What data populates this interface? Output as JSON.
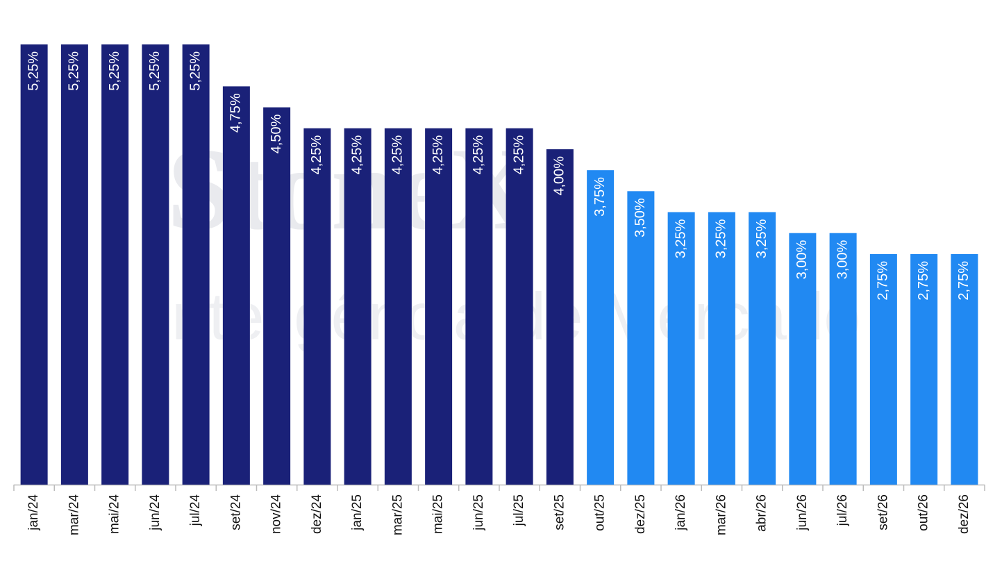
{
  "chart_data": {
    "type": "bar",
    "watermark": {
      "brand": "StoneX",
      "tagline": "Inteligência de Mercado"
    },
    "categories": [
      "jan/24",
      "mar/24",
      "mai/24",
      "jun/24",
      "jul/24",
      "set/24",
      "nov/24",
      "dez/24",
      "jan/25",
      "mar/25",
      "mai/25",
      "jun/25",
      "jul/25",
      "set/25",
      "out/25",
      "dez/25",
      "jan/26",
      "mar/26",
      "abr/26",
      "jun/26",
      "jul/26",
      "set/26",
      "out/26",
      "dez/26"
    ],
    "values": [
      5.25,
      5.25,
      5.25,
      5.25,
      5.25,
      4.75,
      4.5,
      4.25,
      4.25,
      4.25,
      4.25,
      4.25,
      4.25,
      4.0,
      3.75,
      3.5,
      3.25,
      3.25,
      3.25,
      3.0,
      3.0,
      2.75,
      2.75,
      2.75
    ],
    "value_labels": [
      "5,25%",
      "5,25%",
      "5,25%",
      "5,25%",
      "5,25%",
      "4,75%",
      "4,50%",
      "4,25%",
      "4,25%",
      "4,25%",
      "4,25%",
      "4,25%",
      "4,25%",
      "4,00%",
      "3,75%",
      "3,50%",
      "3,25%",
      "3,25%",
      "3,25%",
      "3,00%",
      "3,00%",
      "2,75%",
      "2,75%",
      "2,75%"
    ],
    "colors": [
      "#1a2178",
      "#1a2178",
      "#1a2178",
      "#1a2178",
      "#1a2178",
      "#1a2178",
      "#1a2178",
      "#1a2178",
      "#1a2178",
      "#1a2178",
      "#1a2178",
      "#1a2178",
      "#1a2178",
      "#1a2178",
      "#2189f2",
      "#2189f2",
      "#2189f2",
      "#2189f2",
      "#2189f2",
      "#2189f2",
      "#2189f2",
      "#2189f2",
      "#2189f2",
      "#2189f2"
    ],
    "ylim": [
      0,
      5.25
    ]
  }
}
